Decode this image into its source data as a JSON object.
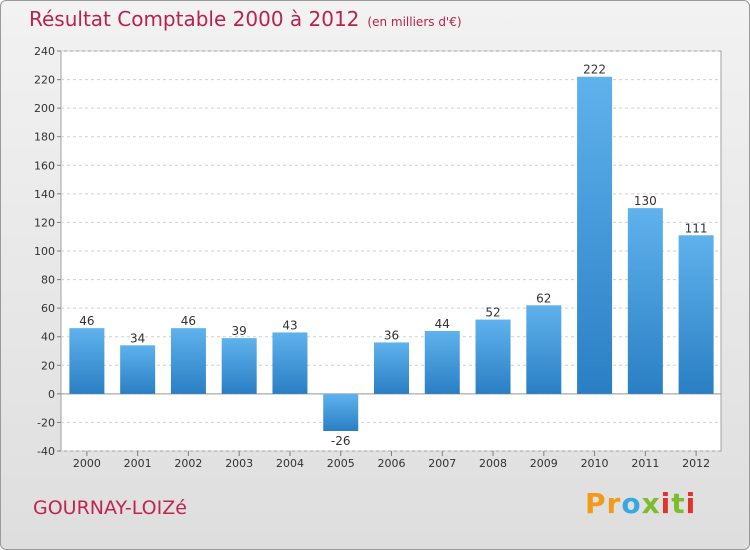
{
  "chart_data": {
    "type": "bar",
    "title": "Résultat Comptable 2000 à 2012",
    "subtitle": "(en milliers d'€)",
    "categories": [
      "2000",
      "2001",
      "2002",
      "2003",
      "2004",
      "2005",
      "2006",
      "2007",
      "2008",
      "2009",
      "2010",
      "2011",
      "2012"
    ],
    "values": [
      46,
      34,
      46,
      39,
      43,
      -26,
      36,
      44,
      52,
      62,
      222,
      130,
      111
    ],
    "yticks": [
      -40,
      -20,
      0,
      20,
      40,
      60,
      80,
      100,
      120,
      140,
      160,
      180,
      200,
      220,
      240
    ],
    "ylim": [
      -40,
      240
    ],
    "grid": true,
    "bar_color": "#3c92d6",
    "xlabel": "",
    "ylabel": ""
  },
  "footer": {
    "place": "GOURNAY-LOIZé",
    "logo": "Proxiti",
    "logo_colors": [
      "#f29a1c",
      "#3aa7e0",
      "#7cbc2e",
      "#e0332a"
    ]
  }
}
